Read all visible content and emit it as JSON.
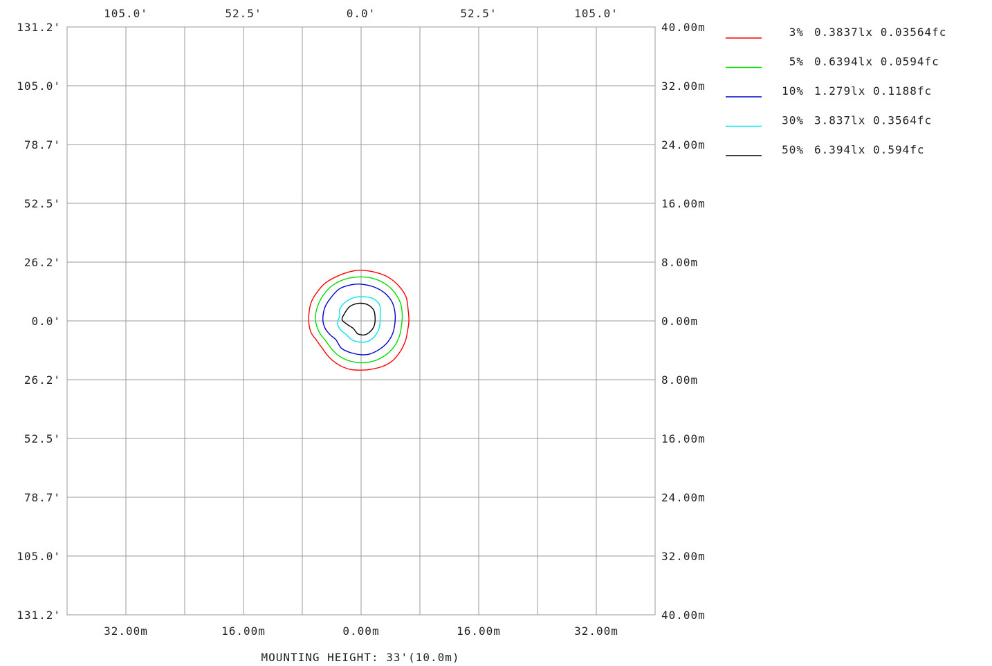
{
  "chart_data": {
    "type": "contour",
    "title": "",
    "xlabel": "MOUNTING HEIGHT: 33'(10.0m)",
    "ylabel": "",
    "x_range_m": [
      -40,
      40
    ],
    "y_range_m": [
      -40,
      40
    ],
    "grid": true,
    "legend_position": "top-right",
    "top_ticks": [
      {
        "value_m": -32,
        "label": "105.0'"
      },
      {
        "value_m": -16,
        "label": "52.5'"
      },
      {
        "value_m": 0,
        "label": "0.0'"
      },
      {
        "value_m": 16,
        "label": "52.5'"
      },
      {
        "value_m": 32,
        "label": "105.0'"
      }
    ],
    "bottom_ticks": [
      {
        "value_m": -32,
        "label": "32.00m"
      },
      {
        "value_m": -16,
        "label": "16.00m"
      },
      {
        "value_m": 0,
        "label": "0.00m"
      },
      {
        "value_m": 16,
        "label": "16.00m"
      },
      {
        "value_m": 32,
        "label": "32.00m"
      }
    ],
    "left_ticks": [
      {
        "value_m": 40,
        "label": "131.2'"
      },
      {
        "value_m": 32,
        "label": "105.0'"
      },
      {
        "value_m": 24,
        "label": "78.7'"
      },
      {
        "value_m": 16,
        "label": "52.5'"
      },
      {
        "value_m": 8,
        "label": "26.2'"
      },
      {
        "value_m": 0,
        "label": "0.0'"
      },
      {
        "value_m": -8,
        "label": "26.2'"
      },
      {
        "value_m": -16,
        "label": "52.5'"
      },
      {
        "value_m": -24,
        "label": "78.7'"
      },
      {
        "value_m": -32,
        "label": "105.0'"
      },
      {
        "value_m": -40,
        "label": "131.2'"
      }
    ],
    "right_ticks": [
      {
        "value_m": 40,
        "label": "40.00m"
      },
      {
        "value_m": 32,
        "label": "32.00m"
      },
      {
        "value_m": 24,
        "label": "24.00m"
      },
      {
        "value_m": 16,
        "label": "16.00m"
      },
      {
        "value_m": 8,
        "label": "8.00m"
      },
      {
        "value_m": 0,
        "label": "0.00m"
      },
      {
        "value_m": -8,
        "label": "8.00m"
      },
      {
        "value_m": -16,
        "label": "16.00m"
      },
      {
        "value_m": -24,
        "label": "24.00m"
      },
      {
        "value_m": -32,
        "label": "32.00m"
      },
      {
        "value_m": -40,
        "label": "40.00m"
      }
    ],
    "series": [
      {
        "name": "3% 0.3837lx 0.03564fc",
        "color": "#ff0000",
        "points_m": [
          [
            0,
            6.9
          ],
          [
            2,
            6.6
          ],
          [
            3.6,
            6
          ],
          [
            5,
            4.9
          ],
          [
            6.1,
            3.3
          ],
          [
            6.4,
            1.5
          ],
          [
            6.5,
            0
          ],
          [
            6.3,
            -1.5
          ],
          [
            6,
            -2.8
          ],
          [
            5.3,
            -4.2
          ],
          [
            4.3,
            -5.4
          ],
          [
            2.9,
            -6.2
          ],
          [
            1.3,
            -6.6
          ],
          [
            0,
            -6.7
          ],
          [
            -1.5,
            -6.6
          ],
          [
            -3,
            -6
          ],
          [
            -4.3,
            -5
          ],
          [
            -5.3,
            -3.7
          ],
          [
            -6.1,
            -2.6
          ],
          [
            -6.8,
            -1.6
          ],
          [
            -7.1,
            -0.4
          ],
          [
            -7.1,
            1
          ],
          [
            -6.8,
            2.5
          ],
          [
            -6,
            3.9
          ],
          [
            -4.8,
            5.2
          ],
          [
            -3.2,
            6.1
          ],
          [
            -1.5,
            6.7
          ]
        ]
      },
      {
        "name": "5% 0.6394lx 0.0594fc",
        "color": "#00dd00",
        "points_m": [
          [
            0,
            6
          ],
          [
            1.9,
            5.7
          ],
          [
            3.5,
            4.9
          ],
          [
            4.6,
            3.8
          ],
          [
            5.4,
            2.3
          ],
          [
            5.6,
            0.8
          ],
          [
            5.5,
            -0.6
          ],
          [
            5.2,
            -2.1
          ],
          [
            4.5,
            -3.5
          ],
          [
            3.4,
            -4.6
          ],
          [
            1.9,
            -5.4
          ],
          [
            0,
            -5.7
          ],
          [
            -1.7,
            -5.4
          ],
          [
            -3.1,
            -4.7
          ],
          [
            -4.1,
            -3.7
          ],
          [
            -4.9,
            -2.6
          ],
          [
            -5.6,
            -1.7
          ],
          [
            -6.1,
            -0.5
          ],
          [
            -6.2,
            0.8
          ],
          [
            -5.8,
            2.3
          ],
          [
            -5,
            3.7
          ],
          [
            -3.8,
            4.9
          ],
          [
            -2.1,
            5.7
          ]
        ]
      },
      {
        "name": "10% 1.279lx 0.1188fc",
        "color": "#0000cc",
        "points_m": [
          [
            0,
            5
          ],
          [
            1.8,
            4.6
          ],
          [
            3.2,
            3.8
          ],
          [
            4.2,
            2.6
          ],
          [
            4.6,
            1.2
          ],
          [
            4.6,
            -0.3
          ],
          [
            4.3,
            -1.7
          ],
          [
            3.6,
            -2.9
          ],
          [
            2.6,
            -3.8
          ],
          [
            1.2,
            -4.5
          ],
          [
            0,
            -4.6
          ],
          [
            -1.5,
            -4.3
          ],
          [
            -2.7,
            -3.7
          ],
          [
            -3.4,
            -2.6
          ],
          [
            -4.2,
            -1.9
          ],
          [
            -4.9,
            -1
          ],
          [
            -5.2,
            0.2
          ],
          [
            -4.9,
            1.9
          ],
          [
            -4,
            3.3
          ],
          [
            -2.9,
            4.4
          ],
          [
            -1.4,
            4.9
          ]
        ]
      },
      {
        "name": "30% 3.837lx 0.3564fc",
        "color": "#00e5ee",
        "points_m": [
          [
            0,
            3.3
          ],
          [
            1.5,
            3.1
          ],
          [
            2.5,
            2.2
          ],
          [
            2.6,
            0.8
          ],
          [
            2.5,
            -0.8
          ],
          [
            2,
            -1.9
          ],
          [
            1.1,
            -2.7
          ],
          [
            0,
            -2.9
          ],
          [
            -1.2,
            -2.6
          ],
          [
            -2.1,
            -1.8
          ],
          [
            -2.9,
            -1.1
          ],
          [
            -3.2,
            -0.2
          ],
          [
            -2.9,
            0.7
          ],
          [
            -2.9,
            1.6
          ],
          [
            -2.2,
            2.5
          ],
          [
            -1.2,
            3.1
          ]
        ]
      },
      {
        "name": "50% 6.394lx 0.594fc",
        "color": "#000000",
        "points_m": [
          [
            0,
            2.4
          ],
          [
            0.9,
            2.2
          ],
          [
            1.7,
            1.5
          ],
          [
            1.9,
            0.5
          ],
          [
            1.8,
            -0.6
          ],
          [
            1.3,
            -1.4
          ],
          [
            0.5,
            -1.9
          ],
          [
            -0.4,
            -1.8
          ],
          [
            -0.7,
            -1.5
          ],
          [
            -1.1,
            -1
          ],
          [
            -2,
            -0.4
          ],
          [
            -2.6,
            0.2
          ],
          [
            -2.2,
            1.1
          ],
          [
            -1.6,
            1.9
          ],
          [
            -0.8,
            2.3
          ]
        ]
      }
    ]
  }
}
